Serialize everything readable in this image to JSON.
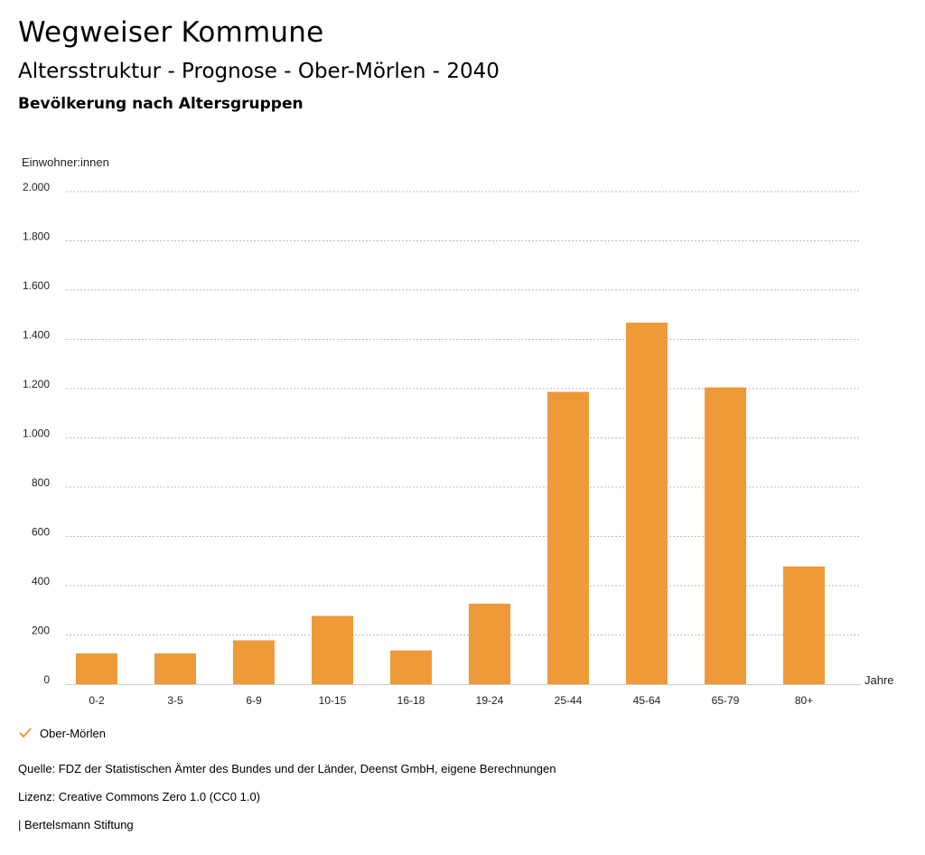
{
  "header": {
    "title": "Wegweiser Kommune",
    "subtitle": "Altersstruktur - Prognose - Ober-Mörlen - 2040",
    "subtitle2": "Bevölkerung nach Altersgruppen"
  },
  "chart_data": {
    "type": "bar",
    "ylabel": "Einwohner:innen",
    "xlabel": "Jahre",
    "categories": [
      "0-2",
      "3-5",
      "6-9",
      "10-15",
      "16-18",
      "19-24",
      "25-44",
      "45-64",
      "65-79",
      "80+"
    ],
    "series": [
      {
        "name": "Ober-Mörlen",
        "values": [
          125,
          125,
          178,
          277,
          137,
          327,
          1187,
          1468,
          1205,
          478
        ]
      }
    ],
    "ylim": [
      0,
      2000
    ],
    "yticks": [
      0,
      200,
      400,
      600,
      800,
      1000,
      1200,
      1400,
      1600,
      1800,
      2000
    ],
    "ytick_labels": [
      "0",
      "200",
      "400",
      "600",
      "800",
      "1.000",
      "1.200",
      "1.400",
      "1.600",
      "1.800",
      "2.000"
    ],
    "grid": true,
    "legend_position": "bottom-left",
    "colors": {
      "bar": "#ee9a38",
      "grid": "#bbbbbb"
    }
  },
  "legend": {
    "label": "Ober-Mörlen"
  },
  "footer": {
    "source": "Quelle: FDZ der Statistischen Ämter des Bundes und der Länder, Deenst GmbH, eigene Berechnungen",
    "license": "Lizenz: Creative Commons Zero 1.0 (CC0 1.0)",
    "credit": "| Bertelsmann Stiftung"
  }
}
